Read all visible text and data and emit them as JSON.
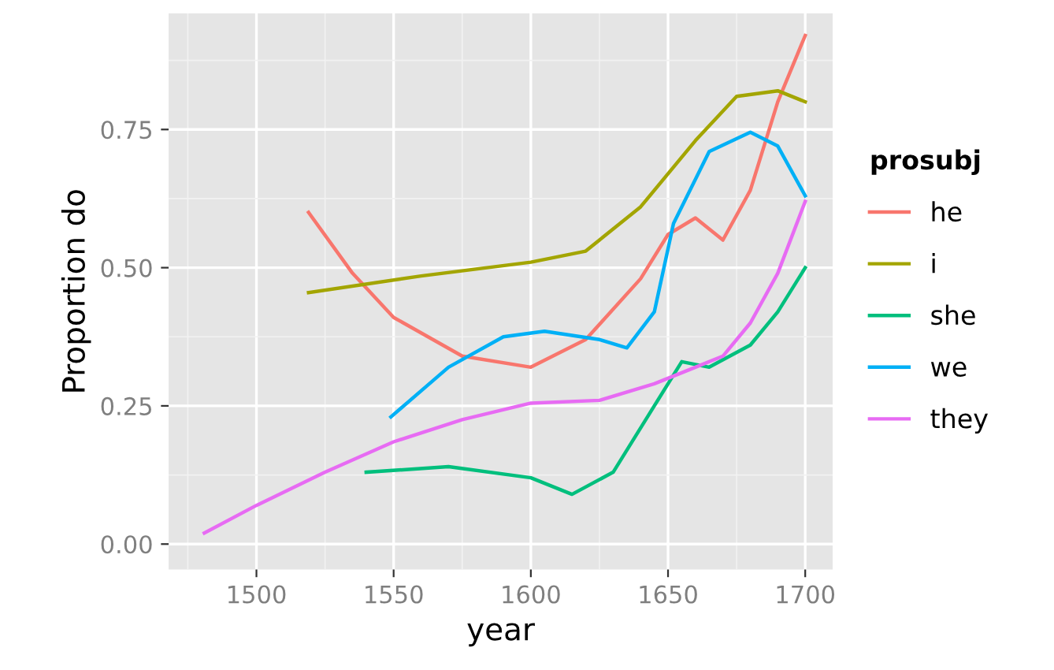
{
  "chart_data": {
    "type": "line",
    "xlabel": "year",
    "ylabel": "Proportion do",
    "legend_title": "prosubj",
    "legend": "right",
    "grid": true,
    "xlim": [
      1468,
      1710
    ],
    "ylim": [
      -0.046,
      0.96
    ],
    "xticks": [
      1500,
      1550,
      1600,
      1650,
      1700
    ],
    "yticks": [
      {
        "value": 0,
        "label": "0.00"
      },
      {
        "value": 0.25,
        "label": "0.25"
      },
      {
        "value": 0.5,
        "label": "0.50"
      },
      {
        "value": 0.75,
        "label": "0.75"
      }
    ],
    "series": [
      {
        "name": "he",
        "color": "#f8766d",
        "x": [
          1519,
          1535,
          1550,
          1575,
          1600,
          1620,
          1640,
          1650,
          1660,
          1670,
          1680,
          1690,
          1700
        ],
        "values": [
          0.6,
          0.49,
          0.41,
          0.34,
          0.32,
          0.37,
          0.48,
          0.56,
          0.59,
          0.55,
          0.64,
          0.8,
          0.92
        ]
      },
      {
        "name": "i",
        "color": "#a3a500",
        "x": [
          1519,
          1560,
          1600,
          1620,
          1640,
          1660,
          1675,
          1690,
          1700
        ],
        "values": [
          0.455,
          0.485,
          0.51,
          0.53,
          0.61,
          0.73,
          0.81,
          0.82,
          0.8
        ]
      },
      {
        "name": "she",
        "color": "#00bf7d",
        "x": [
          1540,
          1570,
          1600,
          1615,
          1630,
          1645,
          1655,
          1665,
          1680,
          1690,
          1700
        ],
        "values": [
          0.13,
          0.14,
          0.12,
          0.09,
          0.13,
          0.25,
          0.33,
          0.32,
          0.36,
          0.42,
          0.5
        ]
      },
      {
        "name": "we",
        "color": "#00b0f6",
        "x": [
          1549,
          1570,
          1590,
          1605,
          1625,
          1635,
          1645,
          1652,
          1665,
          1680,
          1690,
          1700
        ],
        "values": [
          0.23,
          0.32,
          0.375,
          0.385,
          0.37,
          0.355,
          0.42,
          0.58,
          0.71,
          0.745,
          0.72,
          0.63
        ]
      },
      {
        "name": "they",
        "color": "#e76bf3",
        "x": [
          1481,
          1500,
          1525,
          1550,
          1575,
          1600,
          1625,
          1645,
          1660,
          1670,
          1680,
          1690,
          1700
        ],
        "values": [
          0.02,
          0.07,
          0.13,
          0.185,
          0.225,
          0.255,
          0.26,
          0.29,
          0.32,
          0.34,
          0.4,
          0.49,
          0.62
        ]
      }
    ]
  }
}
